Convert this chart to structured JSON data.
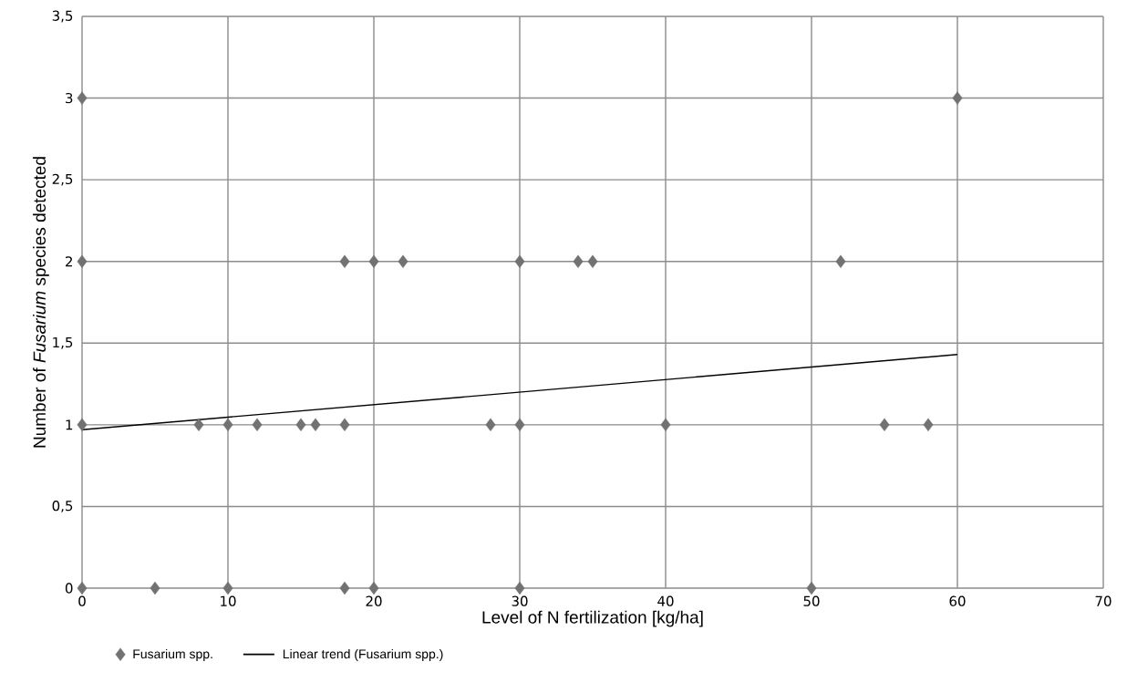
{
  "chart_data": {
    "type": "scatter",
    "xlabel": "Level of N fertilization [kg/ha]",
    "ylabel": "Number of *Fusarium* species detected",
    "xlim": [
      0,
      70
    ],
    "ylim": [
      0,
      3.5
    ],
    "xticks": [
      0,
      10,
      20,
      30,
      40,
      50,
      60,
      70
    ],
    "yticks": [
      0,
      {
        "value": 0.5,
        "label": "0,5"
      },
      1,
      {
        "value": 1.5,
        "label": "1,5"
      },
      2,
      {
        "value": 2.5,
        "label": "2,5"
      },
      3,
      {
        "value": 3.5,
        "label": "3,5"
      }
    ],
    "grid": true,
    "legend": "bottom",
    "marker": "diamond",
    "series": [
      {
        "name": "Fusarium spp.",
        "color": "#727272",
        "x": [
          0,
          60,
          0,
          18,
          20,
          22,
          30,
          34,
          35,
          52,
          0,
          8,
          10,
          12,
          15,
          16,
          18,
          28,
          30,
          40,
          55,
          58,
          0,
          5,
          10,
          18,
          20,
          30,
          50
        ],
        "values": [
          3,
          3,
          2,
          2,
          2,
          2,
          2,
          2,
          2,
          2,
          1,
          1,
          1,
          1,
          1,
          1,
          1,
          1,
          1,
          1,
          1,
          1,
          0,
          0,
          0,
          0,
          0,
          0,
          0
        ]
      },
      {
        "name": "Linear trend (Fusarium spp.)",
        "type": "line",
        "color": "#000000",
        "marker": "none",
        "line_style": "solid",
        "x": [
          0,
          60
        ],
        "values": [
          0.97,
          1.43
        ]
      }
    ]
  }
}
